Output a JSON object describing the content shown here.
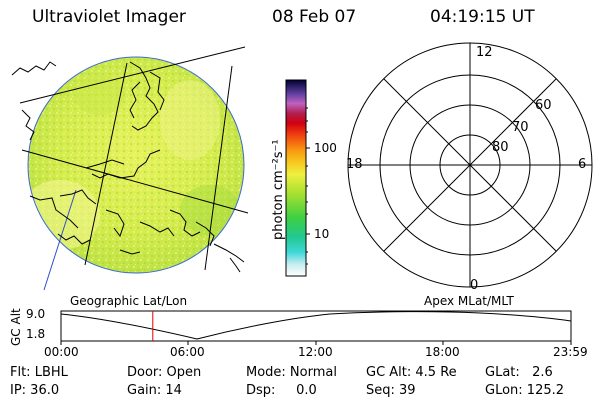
{
  "header": {
    "title": "Ultraviolet Imager",
    "date": "08 Feb 07",
    "time": "04:19:15 UT"
  },
  "colorbar": {
    "unit_label": "photon cm⁻²s⁻¹",
    "tick_100": "100",
    "tick_10": "10"
  },
  "polar": {
    "mlt_top": "12",
    "mlt_left": "18",
    "mlt_right": "6",
    "mlt_bottom": "0",
    "lat_60": "60",
    "lat_70": "70",
    "lat_80": "80"
  },
  "panels": {
    "left_label": "Geographic Lat/Lon",
    "right_label": "Apex MLat/MLT"
  },
  "altitude": {
    "ylabel": "GC Alt",
    "ymax": "9.0",
    "ymin": "1.8",
    "ticks": [
      "00:00",
      "06:00",
      "12:00",
      "18:00",
      "23:59"
    ],
    "marker_fraction": 0.18
  },
  "status": {
    "flt": "Flt: LBHL",
    "door": "Door: Open",
    "mode": "Mode: Normal",
    "gcalt": "GC Alt: 4.5 Re",
    "glat": "GLat:   2.6",
    "ip": "IP: 36.0",
    "gain": "Gain: 14",
    "dsp": "Dsp:     0.0",
    "seq": "Seq: 39",
    "glon": "GLon: 125.2"
  },
  "colors": {
    "disk_base": "#d8ee50",
    "marker": "#e00000",
    "coast": "#000000",
    "limb": "#3a6ad8"
  }
}
